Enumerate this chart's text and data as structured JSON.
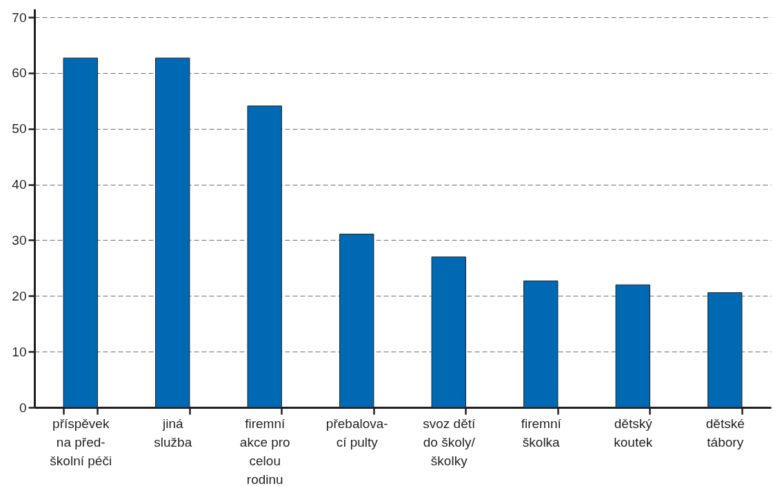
{
  "chart_data": {
    "type": "bar",
    "categories": [
      "příspěvek\nna před-\nškolní péči",
      "jiná\nslužba",
      "firemní\nakce pro\ncelou\nrodinu",
      "přebalova-\ncí pulty",
      "svoz dětí\ndo školy/\nškolky",
      "firemní\nškolka",
      "dětský\nkoutek",
      "dětské\ntábory"
    ],
    "values": [
      62.7,
      62.7,
      54.1,
      31.1,
      27.0,
      22.7,
      22.0,
      20.6
    ],
    "color": "#0069b4",
    "ylim": [
      0,
      71.5
    ],
    "yticks": [
      0,
      10,
      20,
      30,
      40,
      50,
      60,
      70
    ],
    "grid": "y"
  }
}
